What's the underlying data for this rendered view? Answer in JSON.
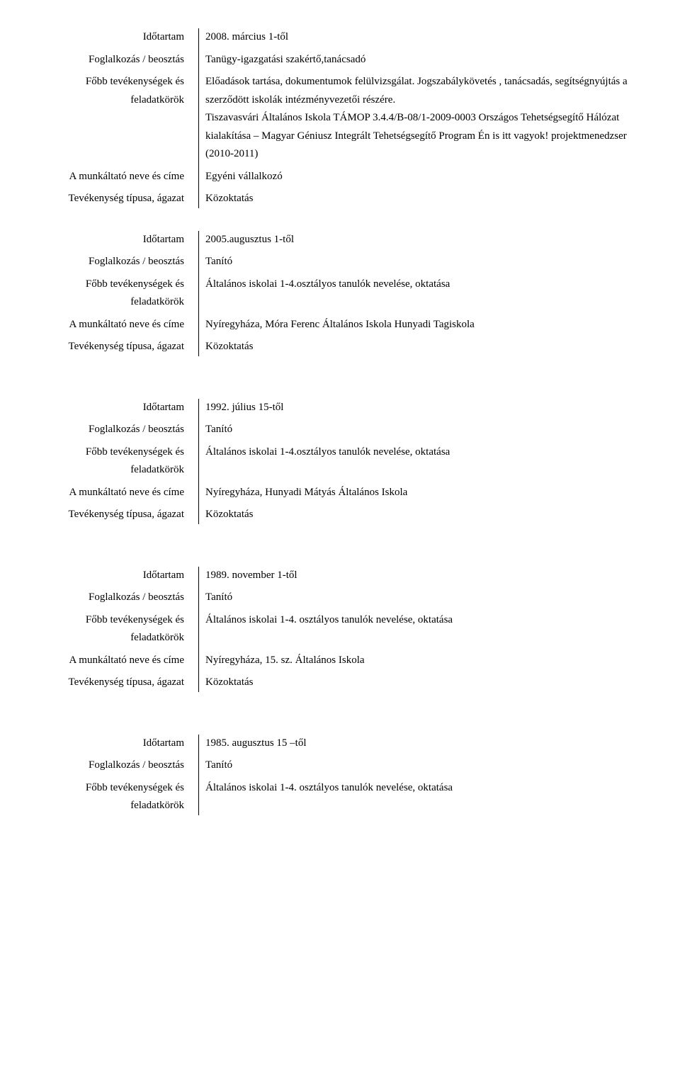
{
  "labels": {
    "idotartam": "Időtartam",
    "foglalkozas": "Foglalkozás / beosztás",
    "fobb_tevekenyseg": "Főbb tevékenységek és feladatkörök",
    "munkaltato": "A munkáltató neve és címe",
    "tevekenyseg_tipus": "Tevékenység típusa, ágazat"
  },
  "entries": [
    {
      "idotartam": "2008. március 1-től",
      "foglalkozas": "Tanügy-igazgatási  szakértő,tanácsadó",
      "fobb_tevekenyseg": "Előadások tartása, dokumentumok felülvizsgálat. Jogszabálykövetés , tanácsadás, segítségnyújtás a  szerződött iskolák intézményvezetői részére.\nTiszavasvári Általános Iskola  TÁMOP 3.4.4/B-08/1-2009-0003  Országos Tehetségsegítő Hálózat kialakítása – Magyar Géniusz Integrált Tehetségsegítő Program Én is itt vagyok! projektmenedzser (2010-2011)",
      "munkaltato": "Egyéni vállalkozó",
      "tevekenyseg_tipus": "Közoktatás"
    },
    {
      "idotartam": "2005.augusztus 1-től",
      "foglalkozas": "Tanító",
      "fobb_tevekenyseg": "Általános iskolai 1-4.osztályos tanulók nevelése, oktatása",
      "munkaltato": "Nyíregyháza, Móra Ferenc Általános Iskola Hunyadi Tagiskola",
      "tevekenyseg_tipus": "Közoktatás"
    },
    {
      "idotartam": "1992. július 15-től",
      "foglalkozas": "Tanító",
      "fobb_tevekenyseg": "Általános iskolai 1-4.osztályos tanulók nevelése, oktatása",
      "munkaltato": "Nyíregyháza, Hunyadi Mátyás Általános Iskola",
      "tevekenyseg_tipus": "Közoktatás"
    },
    {
      "idotartam": "1989. november 1-től",
      "foglalkozas": "Tanító",
      "fobb_tevekenyseg": "Általános iskolai 1-4. osztályos tanulók nevelése, oktatása",
      "munkaltato": "Nyíregyháza, 15. sz. Általános Iskola",
      "tevekenyseg_tipus": "Közoktatás"
    },
    {
      "idotartam": "1985. augusztus 15 –től",
      "foglalkozas": "Tanító",
      "fobb_tevekenyseg": "Általános iskolai 1-4. osztályos tanulók nevelése, oktatása"
    }
  ]
}
